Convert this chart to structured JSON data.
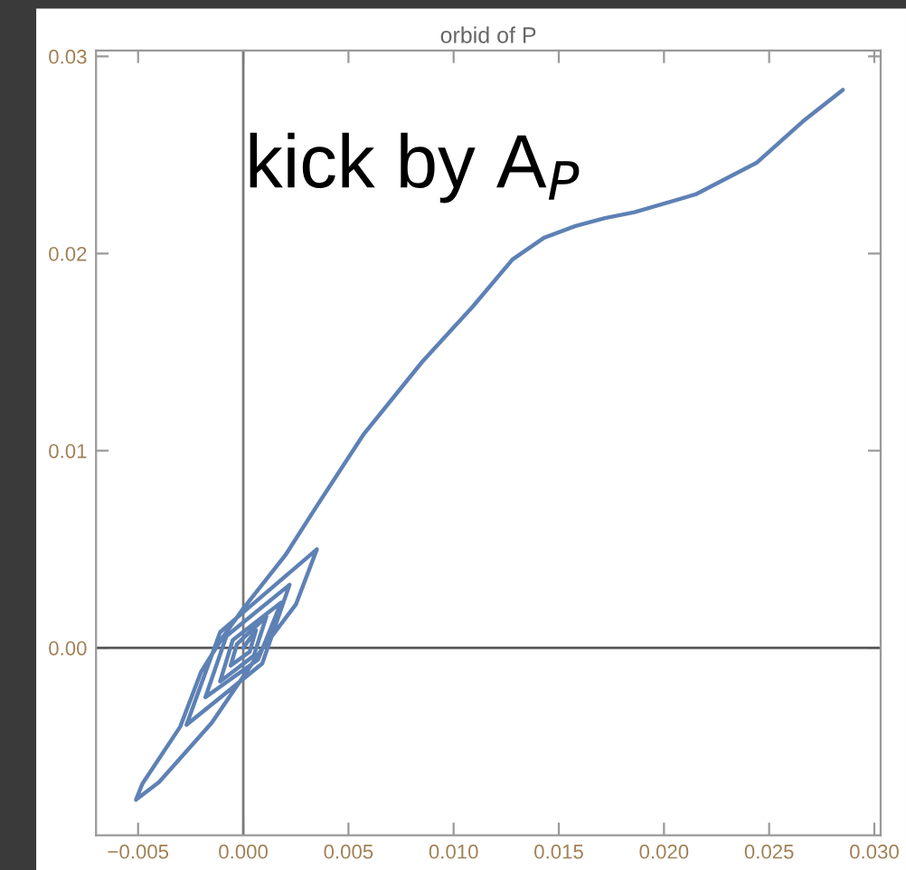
{
  "chart_data": {
    "type": "line",
    "title": "orbid of P",
    "annotations": [
      "kick by A$_{P}$"
    ],
    "series": [
      {
        "color": "#5e81b5",
        "x": [
          0.0,
          0.0006,
          0.0003,
          -0.0006,
          -0.0003,
          0.0011,
          0.0005,
          -0.0011,
          -0.0005,
          0.0018,
          0.0007,
          -0.0018,
          -0.0008,
          0.0022,
          0.0009,
          -0.0027,
          -0.0011,
          0.0035,
          0.0025,
          0.0008,
          -0.0015,
          -0.004,
          -0.0051,
          -0.0048,
          -0.003,
          -0.002,
          -0.001,
          0.0,
          0.002,
          0.0035,
          0.0057,
          0.0085,
          0.0109,
          0.0128,
          0.0143,
          0.0158,
          0.0172,
          0.0186,
          0.0215,
          0.0244,
          0.0266,
          0.0285
        ],
        "values": [
          0.0,
          0.0009,
          -0.0002,
          -0.0009,
          0.0002,
          0.0016,
          -0.0004,
          -0.0017,
          0.0004,
          0.0023,
          -0.0006,
          -0.0025,
          0.0006,
          0.0032,
          -0.0008,
          -0.0039,
          0.0008,
          0.005,
          0.0022,
          -0.0002,
          -0.0038,
          -0.0068,
          -0.0077,
          -0.0069,
          -0.004,
          -0.0012,
          0.0005,
          0.002,
          0.0047,
          0.0072,
          0.0108,
          0.0145,
          0.0173,
          0.0197,
          0.0208,
          0.0214,
          0.0218,
          0.0221,
          0.023,
          0.0246,
          0.0267,
          0.0283
        ]
      }
    ],
    "xlim": [
      -0.007,
      0.0303
    ],
    "ylim": [
      -0.0095,
      0.0303
    ],
    "xticks": [
      {
        "value": -0.005,
        "label": "−0.005"
      },
      {
        "value": 0,
        "label": "0.000"
      },
      {
        "value": 0.005,
        "label": "0.005"
      },
      {
        "value": 0.01,
        "label": "0.010"
      },
      {
        "value": 0.015,
        "label": "0.015"
      },
      {
        "value": 0.02,
        "label": "0.020"
      },
      {
        "value": 0.025,
        "label": "0.025"
      },
      {
        "value": 0.03,
        "label": "0.030"
      }
    ],
    "yticks": [
      {
        "value": 0,
        "label": "0.00"
      },
      {
        "value": 0.01,
        "label": "0.01"
      },
      {
        "value": 0.02,
        "label": "0.02"
      },
      {
        "value": 0.03,
        "label": "0.03"
      }
    ],
    "ref_lines": [
      {
        "axis": "x",
        "value": 0,
        "color": "#7a7a7a"
      },
      {
        "axis": "y",
        "value": 0,
        "color": "#5a5a5a"
      }
    ],
    "grid": false,
    "legend": false,
    "marker": "none",
    "line_style": "solid"
  }
}
